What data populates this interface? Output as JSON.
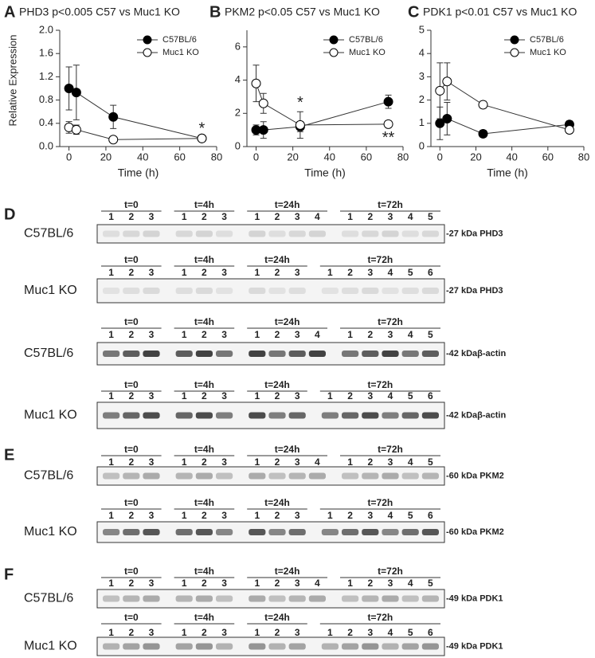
{
  "chart_data": [
    {
      "type": "line",
      "panel": "A",
      "title": "PHD3 p<0.005 C57 vs Muc1 KO",
      "xlabel": "Time (h)",
      "ylabel": "Relative Expression",
      "x": [
        0,
        4,
        24,
        72
      ],
      "xlim": [
        -5,
        80
      ],
      "xticks": [
        0,
        20,
        40,
        60,
        80
      ],
      "ylim": [
        0,
        2
      ],
      "yticks": [
        {
          "value": 0,
          "label": "0.0"
        },
        0.4,
        0.8,
        1.2,
        1.6,
        {
          "value": 2,
          "label": "2.0"
        }
      ],
      "legend": "upper right",
      "series": [
        {
          "name": "C57BL/6",
          "color": "#000000",
          "values": [
            1.0,
            0.93,
            0.51,
            0.14
          ],
          "errors": [
            0.37,
            0.47,
            0.2,
            0.02
          ]
        },
        {
          "name": "Muc1 KO",
          "color": "#ffffff",
          "values": [
            0.33,
            0.29,
            0.12,
            0.14
          ],
          "errors": [
            0.1,
            0.08,
            0.05,
            0.02
          ]
        }
      ],
      "annotations": [
        {
          "text": "*",
          "x": 72,
          "y": 0.3
        }
      ]
    },
    {
      "type": "line",
      "panel": "B",
      "title": "PKM2 p<0.05 C57 vs Muc1 KO",
      "xlabel": "Time (h)",
      "x": [
        0,
        4,
        24,
        72
      ],
      "xlim": [
        -5,
        80
      ],
      "xticks": [
        0,
        20,
        40,
        60,
        80
      ],
      "ylim": [
        0,
        7
      ],
      "yticks": [
        0,
        2,
        4,
        6
      ],
      "legend": "upper right",
      "series": [
        {
          "name": "C57BL/6",
          "color": "#000000",
          "values": [
            1.0,
            1.0,
            1.2,
            2.7
          ],
          "errors": [
            0.3,
            0.5,
            0.3,
            0.4
          ]
        },
        {
          "name": "Muc1 KO",
          "color": "#ffffff",
          "values": [
            3.8,
            2.6,
            1.3,
            1.35
          ],
          "errors": [
            1.1,
            0.6,
            0.8,
            0.2
          ]
        }
      ],
      "annotations": [
        {
          "text": "*",
          "x": 24,
          "y": 2.6
        },
        {
          "text": "**",
          "x": 72,
          "y": 0.5
        }
      ]
    },
    {
      "type": "line",
      "panel": "C",
      "title": "PDK1 p<0.01 C57 vs Muc1 KO",
      "xlabel": "Time (h)",
      "x": [
        0,
        4,
        24,
        72
      ],
      "xlim": [
        -5,
        80
      ],
      "xticks": [
        0,
        20,
        40,
        60,
        80
      ],
      "ylim": [
        0,
        5
      ],
      "yticks": [
        0,
        1,
        2,
        3,
        4,
        5
      ],
      "legend": "upper right",
      "series": [
        {
          "name": "C57BL/6",
          "color": "#000000",
          "values": [
            1.0,
            1.2,
            0.55,
            0.95
          ],
          "errors": [
            0.7,
            0.7,
            0.15,
            0.15
          ]
        },
        {
          "name": "Muc1 KO",
          "color": "#ffffff",
          "values": [
            2.4,
            2.8,
            1.8,
            0.72
          ],
          "errors": [
            1.2,
            0.8,
            0.15,
            0.15
          ]
        }
      ],
      "annotations": []
    }
  ],
  "blots": [
    {
      "panel": "D",
      "rows": [
        {
          "label": "C57BL/6",
          "band": "-27 kDa PHD3",
          "groups": [
            {
              "label": "t=0",
              "lanes": [
                "1",
                "2",
                "3"
              ]
            },
            {
              "label": "t=4h",
              "lanes": [
                "1",
                "2",
                "3"
              ]
            },
            {
              "label": "t=24h",
              "lanes": [
                "1",
                "2",
                "3",
                "4"
              ]
            },
            {
              "label": "t=72h",
              "lanes": [
                "1",
                "2",
                "3",
                "4",
                "5"
              ]
            }
          ]
        },
        {
          "label": "Muc1 KO",
          "band": "-27 kDa PHD3",
          "groups": [
            {
              "label": "t=0",
              "lanes": [
                "1",
                "2",
                "3"
              ]
            },
            {
              "label": "t=4h",
              "lanes": [
                "1",
                "2",
                "3"
              ]
            },
            {
              "label": "t=24h",
              "lanes": [
                "1",
                "2",
                "3"
              ]
            },
            {
              "label": "t=72h",
              "lanes": [
                "1",
                "2",
                "3",
                "4",
                "5",
                "6"
              ]
            }
          ]
        },
        {
          "label": "C57BL/6",
          "band": "-42 kDaβ-actin",
          "groups": [
            {
              "label": "t=0",
              "lanes": [
                "1",
                "2",
                "3"
              ]
            },
            {
              "label": "t=4h",
              "lanes": [
                "1",
                "2",
                "3"
              ]
            },
            {
              "label": "t=24h",
              "lanes": [
                "1",
                "2",
                "3",
                "4"
              ]
            },
            {
              "label": "t=72h",
              "lanes": [
                "1",
                "2",
                "3",
                "4",
                "5"
              ]
            }
          ]
        },
        {
          "label": "Muc1 KO",
          "band": "-42 kDaβ-actin",
          "groups": [
            {
              "label": "t=0",
              "lanes": [
                "1",
                "2",
                "3"
              ]
            },
            {
              "label": "t=4h",
              "lanes": [
                "1",
                "2",
                "3"
              ]
            },
            {
              "label": "t=24h",
              "lanes": [
                "1",
                "2",
                "3"
              ]
            },
            {
              "label": "t=72h",
              "lanes": [
                "1",
                "2",
                "3",
                "4",
                "5",
                "6"
              ]
            }
          ]
        }
      ]
    },
    {
      "panel": "E",
      "rows": [
        {
          "label": "C57BL/6",
          "band": "-60 kDa PKM2",
          "groups": [
            {
              "label": "t=0",
              "lanes": [
                "1",
                "2",
                "3"
              ]
            },
            {
              "label": "t=4h",
              "lanes": [
                "1",
                "2",
                "3"
              ]
            },
            {
              "label": "t=24h",
              "lanes": [
                "1",
                "2",
                "3",
                "4"
              ]
            },
            {
              "label": "t=72h",
              "lanes": [
                "1",
                "2",
                "3",
                "4",
                "5"
              ]
            }
          ]
        },
        {
          "label": "Muc1 KO",
          "band": "-60 kDa PKM2",
          "groups": [
            {
              "label": "t=0",
              "lanes": [
                "1",
                "2",
                "3"
              ]
            },
            {
              "label": "t=4h",
              "lanes": [
                "1",
                "2",
                "3"
              ]
            },
            {
              "label": "t=24h",
              "lanes": [
                "1",
                "2",
                "3"
              ]
            },
            {
              "label": "t=72h",
              "lanes": [
                "1",
                "2",
                "3",
                "4",
                "5",
                "6"
              ]
            }
          ]
        }
      ]
    },
    {
      "panel": "F",
      "rows": [
        {
          "label": "C57BL/6",
          "band": "-49 kDa PDK1",
          "groups": [
            {
              "label": "t=0",
              "lanes": [
                "1",
                "2",
                "3"
              ]
            },
            {
              "label": "t=4h",
              "lanes": [
                "1",
                "2",
                "3"
              ]
            },
            {
              "label": "t=24h",
              "lanes": [
                "1",
                "2",
                "3",
                "4"
              ]
            },
            {
              "label": "t=72h",
              "lanes": [
                "1",
                "2",
                "3",
                "4",
                "5"
              ]
            }
          ]
        },
        {
          "label": "Muc1 KO",
          "band": "-49 kDa PDK1",
          "groups": [
            {
              "label": "t=0",
              "lanes": [
                "1",
                "2",
                "3"
              ]
            },
            {
              "label": "t=4h",
              "lanes": [
                "1",
                "2",
                "3"
              ]
            },
            {
              "label": "t=24h",
              "lanes": [
                "1",
                "2",
                "3"
              ]
            },
            {
              "label": "t=72h",
              "lanes": [
                "1",
                "2",
                "3",
                "4",
                "5",
                "6"
              ]
            }
          ]
        }
      ]
    }
  ]
}
